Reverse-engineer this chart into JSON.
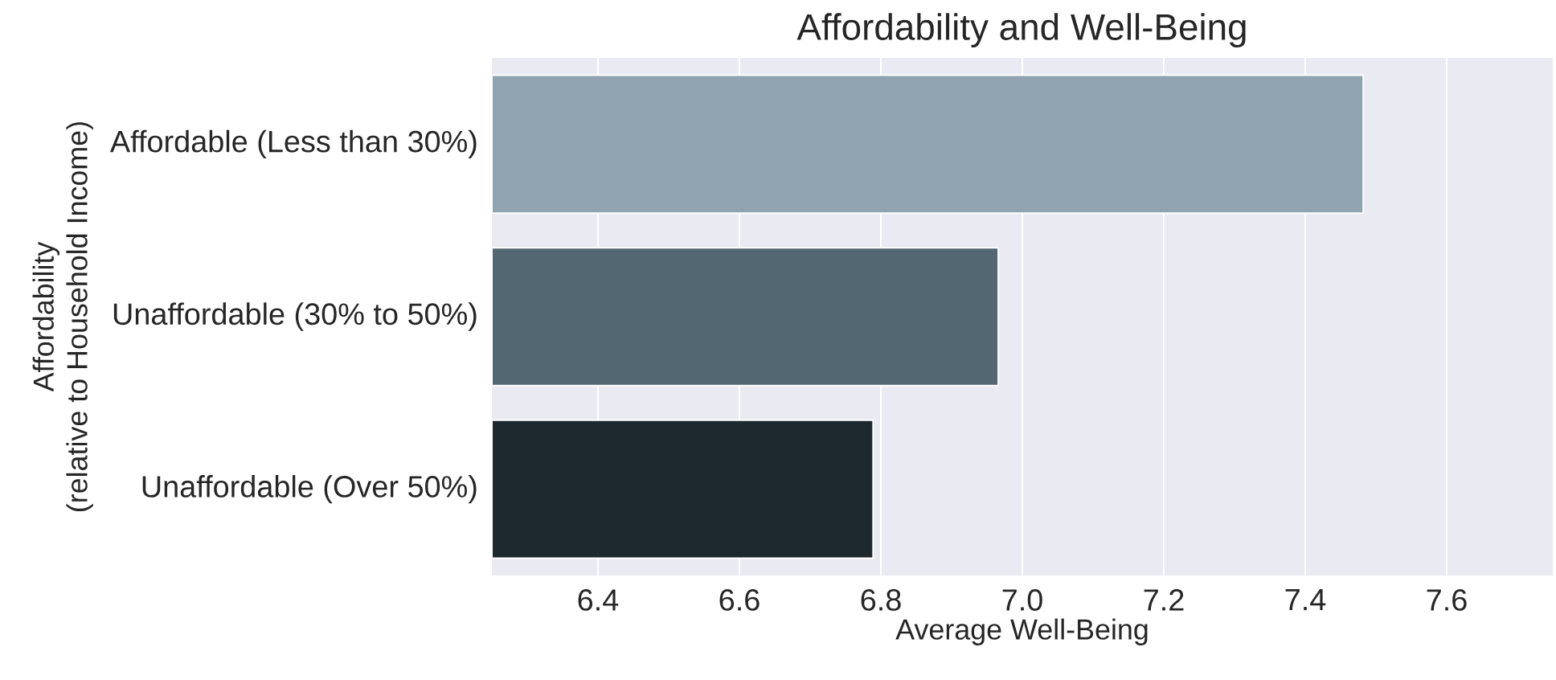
{
  "chart_data": {
    "type": "bar",
    "orientation": "horizontal",
    "title": "Affordability and Well-Being",
    "xlabel": "Average Well-Being",
    "ylabel": "Affordability\n(relative to Household Income)",
    "categories": [
      "Affordable (Less than 30%)",
      "Unaffordable (30% to 50%)",
      "Unaffordable (Over 50%)"
    ],
    "values": [
      7.482,
      6.966,
      6.789
    ],
    "colors": [
      "#90a3b0",
      "#526772",
      "#1e292f"
    ],
    "xlim": [
      6.25,
      7.75
    ],
    "xticks": [
      6.4,
      6.6,
      {
        "value": 6.8,
        "label": "6.8"
      },
      {
        "value": 7.0,
        "label": "7.0"
      },
      7.2,
      7.4,
      7.6
    ],
    "grid": "x"
  }
}
